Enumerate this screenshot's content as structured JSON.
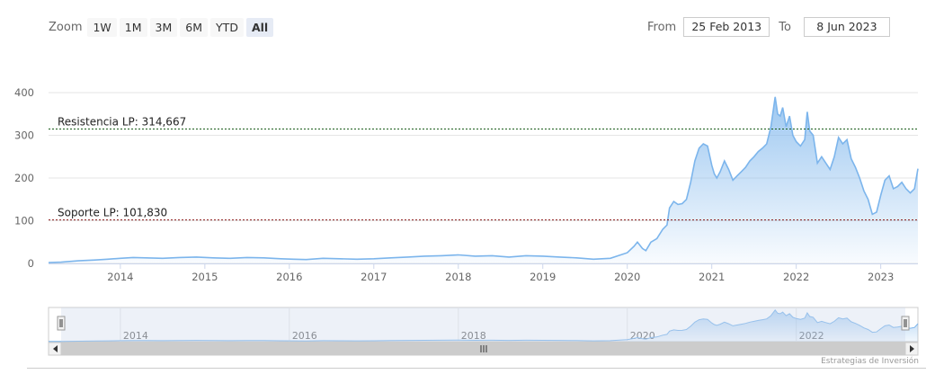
{
  "zoom": {
    "label": "Zoom",
    "buttons": [
      "1W",
      "1M",
      "3M",
      "6M",
      "YTD",
      "All"
    ],
    "selected": "All"
  },
  "range": {
    "from_label": "From",
    "from_value": "25 Feb 2013",
    "to_label": "To",
    "to_value": "8 Jun 2023"
  },
  "credit": "Estrategias de Inversión",
  "colors": {
    "series_line": "#7cb5ec",
    "resistance_line": "#1a5c1a",
    "support_line": "#8b1a1a",
    "navigator_mask": "#ccd6eb"
  },
  "chart_data": {
    "type": "area",
    "title": "",
    "xlabel": "",
    "ylabel": "",
    "ylim": [
      0,
      400
    ],
    "yticks": [
      0,
      100,
      200,
      300,
      400
    ],
    "xlim": [
      2013.15,
      2023.44
    ],
    "xticks": [
      "2014",
      "2015",
      "2016",
      "2017",
      "2018",
      "2019",
      "2020",
      "2021",
      "2022",
      "2023"
    ],
    "grid": true,
    "legend": "none",
    "plot_lines": [
      {
        "label": "Resistencia LP: 314,667",
        "value": 314.667
      },
      {
        "label": "Soporte LP: 101,830",
        "value": 101.83
      }
    ],
    "series": [
      {
        "x": [
          2013.15,
          2013.3,
          2013.5,
          2013.7,
          2013.85,
          2014.0,
          2014.15,
          2014.3,
          2014.5,
          2014.7,
          2014.9,
          2015.1,
          2015.3,
          2015.5,
          2015.7,
          2015.9,
          2016.05,
          2016.2,
          2016.4,
          2016.6,
          2016.8,
          2017.0,
          2017.2,
          2017.4,
          2017.6,
          2017.8,
          2018.0,
          2018.2,
          2018.4,
          2018.6,
          2018.8,
          2019.0,
          2019.2,
          2019.4,
          2019.6,
          2019.8,
          2020.0,
          2020.08,
          2020.12,
          2020.18,
          2020.22,
          2020.28,
          2020.35,
          2020.42,
          2020.47,
          2020.5,
          2020.55,
          2020.6,
          2020.65,
          2020.7,
          2020.75,
          2020.8,
          2020.85,
          2020.9,
          2020.95,
          2021.0,
          2021.03,
          2021.06,
          2021.1,
          2021.15,
          2021.2,
          2021.25,
          2021.3,
          2021.35,
          2021.4,
          2021.45,
          2021.5,
          2021.55,
          2021.6,
          2021.65,
          2021.7,
          2021.75,
          2021.78,
          2021.81,
          2021.84,
          2021.88,
          2021.92,
          2021.96,
          2022.0,
          2022.05,
          2022.1,
          2022.13,
          2022.16,
          2022.2,
          2022.25,
          2022.3,
          2022.35,
          2022.4,
          2022.45,
          2022.5,
          2022.55,
          2022.6,
          2022.65,
          2022.7,
          2022.75,
          2022.8,
          2022.85,
          2022.9,
          2022.95,
          2023.0,
          2023.05,
          2023.1,
          2023.15,
          2023.2,
          2023.25,
          2023.3,
          2023.35,
          2023.4,
          2023.44
        ],
        "values": [
          2,
          3,
          6,
          8,
          10,
          12,
          14,
          13,
          12,
          14,
          15,
          13,
          12,
          14,
          13,
          11,
          10,
          9,
          12,
          11,
          10,
          11,
          13,
          15,
          17,
          18,
          20,
          17,
          18,
          15,
          18,
          17,
          15,
          13,
          10,
          12,
          25,
          40,
          50,
          35,
          30,
          50,
          58,
          80,
          90,
          130,
          145,
          138,
          140,
          150,
          190,
          240,
          270,
          280,
          275,
          230,
          210,
          200,
          215,
          240,
          220,
          195,
          205,
          215,
          225,
          240,
          250,
          262,
          270,
          280,
          320,
          390,
          350,
          345,
          365,
          320,
          345,
          300,
          285,
          275,
          290,
          355,
          310,
          300,
          235,
          250,
          235,
          220,
          250,
          295,
          280,
          290,
          245,
          225,
          200,
          170,
          150,
          115,
          120,
          160,
          195,
          205,
          175,
          180,
          190,
          175,
          165,
          175,
          222
        ]
      }
    ]
  }
}
